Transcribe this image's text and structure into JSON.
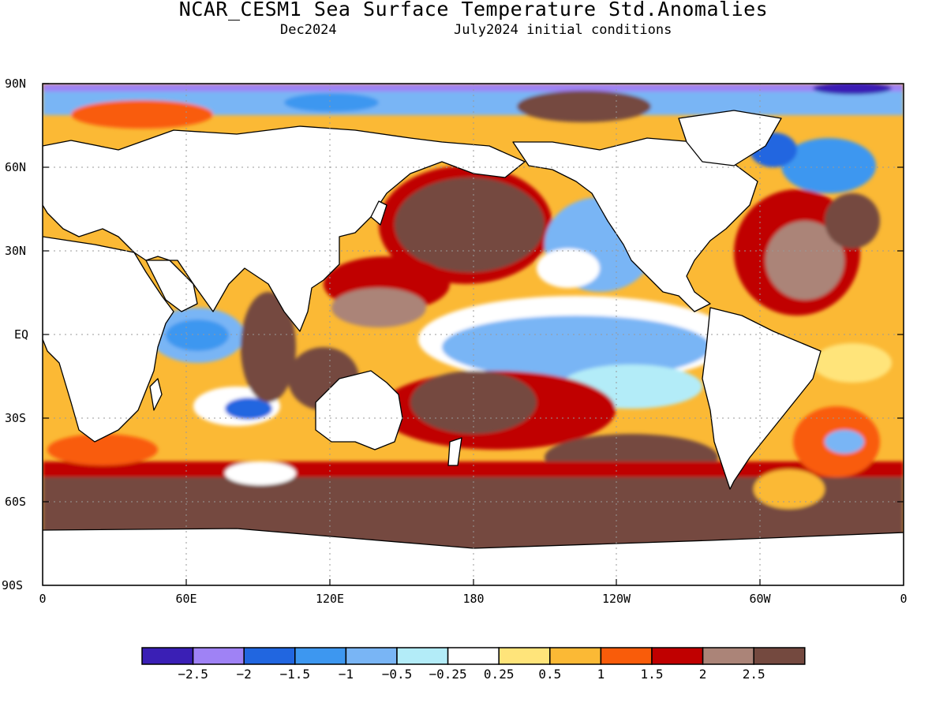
{
  "title": "NCAR_CESM1 Sea Surface Temperature Std.Anomalies",
  "subtitle_left": "Dec2024",
  "subtitle_right": "July2024 initial conditions",
  "lat_labels": [
    "90N",
    "60N",
    "30N",
    "EQ",
    "30S",
    "60S",
    "90S"
  ],
  "lon_labels": [
    "0",
    "60E",
    "120E",
    "180",
    "120W",
    "60W",
    "0"
  ],
  "colorbar": {
    "colors": [
      "#3a1fb5",
      "#9f82f5",
      "#2166e0",
      "#3d97f0",
      "#79b5f5",
      "#b3ecf8",
      "#ffffff",
      "#ffe47a",
      "#fbb935",
      "#f95c0a",
      "#c00000",
      "#ab8478",
      "#74493f"
    ],
    "labels": [
      "−2.5",
      "−2",
      "−1.5",
      "−1",
      "−0.5",
      "−0.25",
      "0.25",
      "0.5",
      "1",
      "1.5",
      "2",
      "2.5"
    ]
  },
  "colors": {
    "land": "#ffffff",
    "coastline": "#000000",
    "grid": "#999999"
  }
}
